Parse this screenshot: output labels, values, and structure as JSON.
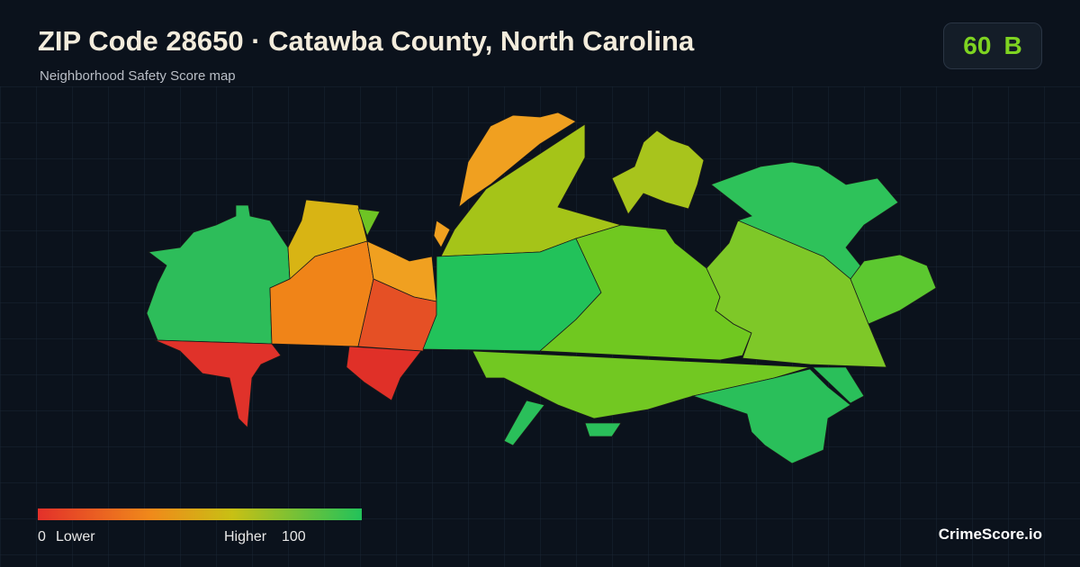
{
  "header": {
    "title": "ZIP Code 28650 · Catawba County, North Carolina",
    "subtitle": "Neighborhood Safety Score map"
  },
  "score": {
    "value": "60",
    "grade": "B"
  },
  "legend": {
    "min": "0",
    "min_label": "Lower",
    "max_label": "Higher",
    "max": "100"
  },
  "brand": "CrimeScore.io"
}
